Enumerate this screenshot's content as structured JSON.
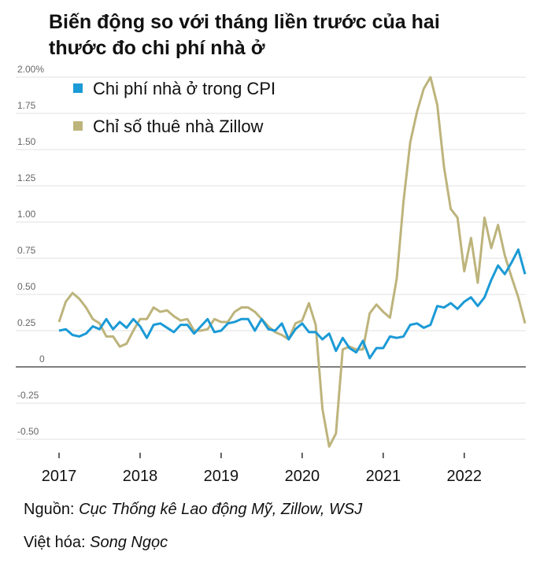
{
  "chart_data": {
    "type": "line",
    "title": "Biến động so với tháng liền trước của hai thước đo chi phí nhà ở",
    "xlabel": "",
    "ylabel": "",
    "x_start": "2017-01",
    "frequency": "monthly",
    "xtick_labels": [
      "2017",
      "2018",
      "2019",
      "2020",
      "2021",
      "2022"
    ],
    "ytick_values": [
      -0.5,
      -0.25,
      0,
      0.25,
      0.5,
      0.75,
      1.0,
      1.25,
      1.5,
      1.75,
      2.0
    ],
    "ytick_labels": [
      "-0.50",
      "-0.25",
      "0",
      "0.25",
      "0.50",
      "0.75",
      "1.00",
      "1.25",
      "1.50",
      "1.75",
      "2.00%"
    ],
    "ylim": [
      -0.6,
      2.0
    ],
    "grid": true,
    "legend_position": "top-left",
    "series": [
      {
        "name": "Chi phí nhà ở trong CPI",
        "color": "#1b9ad6",
        "values": [
          0.25,
          0.26,
          0.22,
          0.21,
          0.23,
          0.28,
          0.26,
          0.33,
          0.26,
          0.31,
          0.27,
          0.33,
          0.28,
          0.2,
          0.29,
          0.3,
          0.27,
          0.24,
          0.29,
          0.29,
          0.23,
          0.28,
          0.33,
          0.24,
          0.25,
          0.3,
          0.31,
          0.33,
          0.33,
          0.25,
          0.33,
          0.26,
          0.25,
          0.3,
          0.19,
          0.26,
          0.3,
          0.24,
          0.24,
          0.19,
          0.23,
          0.11,
          0.2,
          0.13,
          0.1,
          0.18,
          0.06,
          0.13,
          0.13,
          0.21,
          0.2,
          0.21,
          0.29,
          0.3,
          0.27,
          0.29,
          0.42,
          0.41,
          0.44,
          0.4,
          0.45,
          0.48,
          0.42,
          0.48,
          0.6,
          0.7,
          0.64,
          0.72,
          0.81,
          0.64
        ]
      },
      {
        "name": "Chỉ số thuê nhà Zillow",
        "color": "#bdb47c",
        "values": [
          0.31,
          0.45,
          0.51,
          0.47,
          0.41,
          0.33,
          0.3,
          0.21,
          0.21,
          0.14,
          0.16,
          0.25,
          0.33,
          0.33,
          0.41,
          0.38,
          0.39,
          0.35,
          0.32,
          0.33,
          0.25,
          0.25,
          0.26,
          0.33,
          0.31,
          0.31,
          0.38,
          0.41,
          0.41,
          0.38,
          0.33,
          0.28,
          0.24,
          0.22,
          0.19,
          0.3,
          0.32,
          0.44,
          0.29,
          -0.29,
          -0.55,
          -0.46,
          0.12,
          0.14,
          0.12,
          0.12,
          0.37,
          0.43,
          0.38,
          0.34,
          0.61,
          1.14,
          1.55,
          1.76,
          1.92,
          2.0,
          1.81,
          1.38,
          1.09,
          1.03,
          0.66,
          0.89,
          0.58,
          1.03,
          0.82,
          0.98,
          0.77,
          0.62,
          0.48,
          0.3
        ]
      }
    ]
  },
  "footer": {
    "source_label": "Nguồn: ",
    "source_text": "Cục Thống kê Lao động Mỹ, Zillow, WSJ",
    "translator_label": "Việt hóa: ",
    "translator_text": "Song Ngọc"
  }
}
